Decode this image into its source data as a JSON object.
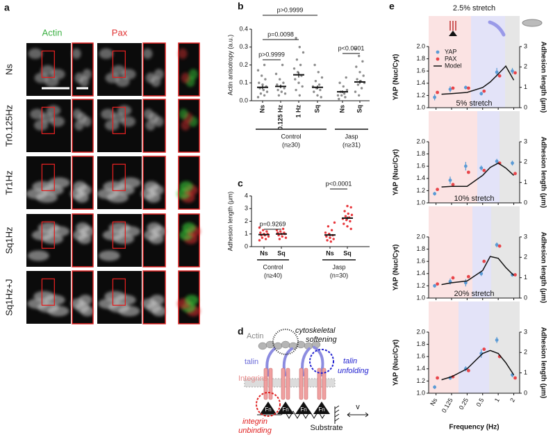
{
  "panel_labels": [
    "a",
    "b",
    "c",
    "d",
    "e"
  ],
  "panel_a": {
    "columns": [
      "Actin",
      "Pax"
    ],
    "rows": [
      "Ns",
      "Tr0.125Hz",
      "Tr1Hz",
      "Sq1Hz",
      "Sq1Hz+J"
    ]
  },
  "panel_d": {
    "actin": "Actin",
    "softening": [
      "cytoskeletal",
      "softening"
    ],
    "talin": "talin",
    "unfolding": [
      "talin",
      "unfolding"
    ],
    "integrins": "Integrins",
    "unbinding": [
      "integrin",
      "unbinding"
    ],
    "fn": [
      "Fn",
      "Fn",
      "Fn",
      "Fn"
    ],
    "substrate": "Substrate",
    "velocity": "v"
  },
  "chart_data": [
    {
      "type": "strip",
      "ylabel": "Actin anisotropy (a.u.)",
      "ylim": [
        0,
        0.4
      ],
      "yticks": [
        {
          "value": 0,
          "label": "0.0"
        },
        0.1,
        0.2,
        0.3,
        0.4
      ],
      "categories": [
        "Ns",
        "0.125 Hz",
        "1 Hz",
        "Sq",
        "Ns",
        "Sq"
      ],
      "point_color": "#8c8c8c",
      "points": [
        [
          0.02,
          0.03,
          0.04,
          0.05,
          0.06,
          0.07,
          0.08,
          0.09,
          0.1,
          0.12,
          0.14,
          0.17,
          0.2
        ],
        [
          0.03,
          0.04,
          0.05,
          0.06,
          0.07,
          0.08,
          0.09,
          0.1,
          0.12,
          0.15,
          0.2
        ],
        [
          0.03,
          0.06,
          0.08,
          0.1,
          0.12,
          0.14,
          0.16,
          0.18,
          0.2,
          0.23,
          0.27,
          0.3,
          0.35
        ],
        [
          0.02,
          0.03,
          0.05,
          0.06,
          0.07,
          0.08,
          0.09,
          0.11,
          0.13,
          0.16,
          0.2
        ],
        [
          0.01,
          0.02,
          0.03,
          0.03,
          0.04,
          0.05,
          0.06,
          0.08,
          0.1,
          0.13
        ],
        [
          0.03,
          0.05,
          0.07,
          0.09,
          0.1,
          0.11,
          0.12,
          0.14,
          0.16,
          0.19,
          0.22,
          0.25,
          0.29
        ]
      ],
      "means": [
        0.075,
        0.08,
        0.145,
        0.075,
        0.05,
        0.105
      ],
      "sem": [
        0.01,
        0.01,
        0.015,
        0.01,
        0.007,
        0.01
      ],
      "groups": [
        {
          "name": "Control",
          "n": "(n≥30)"
        },
        {
          "name": "Jasp",
          "n": "(n≥31)"
        }
      ],
      "comparisons": [
        "p>0.9999",
        "p=0.0098",
        "p>0.9999",
        "p<0.0001"
      ]
    },
    {
      "type": "strip",
      "ylabel": "Adhesion length (μm)",
      "ylim": [
        0,
        4
      ],
      "yticks": [
        0,
        1,
        2,
        3,
        4
      ],
      "categories": [
        "Ns",
        "Sq",
        "Ns",
        "Sq"
      ],
      "point_color": "#e8383d",
      "points": [
        [
          0.5,
          0.6,
          0.7,
          0.8,
          0.9,
          0.9,
          1.0,
          1.0,
          1.1,
          1.2,
          1.3,
          1.5
        ],
        [
          0.6,
          0.7,
          0.8,
          0.9,
          1.0,
          1.0,
          1.1,
          1.1,
          1.2,
          1.3,
          1.4
        ],
        [
          0.4,
          0.5,
          0.6,
          0.7,
          0.8,
          0.9,
          1.0,
          1.1,
          1.3,
          1.6,
          1.9
        ],
        [
          1.4,
          1.6,
          1.8,
          2.0,
          2.1,
          2.2,
          2.3,
          2.4,
          2.5,
          2.6,
          2.8,
          3.1,
          3.2
        ]
      ],
      "means": [
        0.95,
        1.0,
        0.92,
        2.25
      ],
      "sem": [
        0.05,
        0.05,
        0.1,
        0.12
      ],
      "groups": [
        {
          "name": "Control",
          "n": "(n≥40)"
        },
        {
          "name": "Jasp",
          "n": "(n=30)"
        }
      ],
      "comparisons": [
        "p=0.9269",
        "p<0.0001"
      ]
    },
    {
      "type": "line",
      "xlabel": "Frequency (Hz)",
      "ylabel": "YAP (Nuc/Cyt)",
      "y2label": "Adhesion length (μm)",
      "log_x": true,
      "legend": "upper left",
      "xlim": [
        0.045,
        2.6
      ],
      "xticks": [
        {
          "value": 0.0625,
          "label": "Ns"
        },
        0.125,
        0.25,
        0.5,
        1,
        2
      ],
      "ylim": [
        1,
        2
      ],
      "yticks": [
        {
          "value": 1,
          "label": "1.0"
        },
        1.2,
        1.4,
        1.6,
        1.8,
        {
          "value": 2,
          "label": "2.0"
        }
      ],
      "y2lim": [
        0,
        3
      ],
      "y2ticks": [
        0,
        1,
        2,
        3
      ],
      "panels": [
        {
          "title": "2.5% stretch",
          "series": [
            {
              "name": "YAP",
              "color": "#5b9bd5",
              "x": [
                0.0625,
                0.125,
                0.25,
                0.5,
                1,
                2
              ],
              "values": [
                1.17,
                1.3,
                1.33,
                1.23,
                1.58,
                1.6
              ],
              "errors": [
                0.05,
                0.05,
                0.03,
                0.03,
                0.07,
                0.05
              ]
            },
            {
              "name": "PAX",
              "color": "#e8454a",
              "axis": "y2",
              "x": [
                0.0625,
                0.125,
                0.25,
                0.5,
                1,
                2
              ],
              "values": [
                0.75,
                0.96,
                0.96,
                0.81,
                1.56,
                1.71
              ]
            },
            {
              "name": "Model",
              "color": "#111111",
              "axis": "y2",
              "x": [
                0.08,
                0.125,
                0.25,
                0.5,
                0.7,
                1,
                1.4,
                2
              ],
              "values": [
                0.66,
                0.69,
                0.75,
                0.99,
                1.26,
                1.65,
                2.04,
                1.35
              ]
            }
          ]
        },
        {
          "title": "5% stretch",
          "series": [
            {
              "color": "#5b9bd5",
              "x": [
                0.0625,
                0.125,
                0.25,
                0.5,
                1,
                2
              ],
              "values": [
                1.15,
                1.37,
                1.6,
                1.57,
                1.68,
                1.65
              ],
              "errors": [
                0.03,
                0.06,
                0.07,
                0.04,
                0.04,
                0.04
              ]
            },
            {
              "color": "#e8454a",
              "axis": "y2",
              "x": [
                0.0625,
                0.125,
                0.25,
                0.5,
                1,
                2
              ],
              "values": [
                0.66,
                0.9,
                1.5,
                1.59,
                1.95,
                1.44
              ]
            },
            {
              "color": "#111111",
              "axis": "y2",
              "x": [
                0.08,
                0.125,
                0.25,
                0.5,
                0.7,
                1,
                1.4,
                2
              ],
              "values": [
                0.78,
                0.81,
                0.81,
                1.35,
                1.74,
                1.95,
                1.71,
                1.35
              ]
            }
          ]
        },
        {
          "title": "10% stretch",
          "series": [
            {
              "color": "#5b9bd5",
              "x": [
                0.0625,
                0.125,
                0.25,
                0.5,
                1,
                2
              ],
              "values": [
                1.2,
                1.27,
                1.25,
                1.4,
                1.87,
                1.38
              ],
              "errors": [
                0.03,
                0.05,
                0.06,
                0.04,
                0.04,
                0.03
              ]
            },
            {
              "color": "#e8454a",
              "axis": "y2",
              "x": [
                0.0625,
                0.125,
                0.25,
                0.5,
                1,
                2
              ],
              "values": [
                0.69,
                0.99,
                1.05,
                1.8,
                2.55,
                1.14
              ]
            },
            {
              "color": "#111111",
              "axis": "y2",
              "x": [
                0.08,
                0.125,
                0.25,
                0.5,
                0.7,
                1,
                1.4,
                2
              ],
              "values": [
                0.66,
                0.75,
                0.84,
                1.35,
                2.04,
                1.95,
                1.5,
                1.11
              ]
            }
          ]
        },
        {
          "title": "20% stretch",
          "series": [
            {
              "color": "#5b9bd5",
              "x": [
                0.0625,
                0.125,
                0.25,
                0.5,
                1,
                2
              ],
              "values": [
                1.1,
                1.25,
                1.4,
                1.65,
                1.87,
                1.3
              ],
              "errors": [
                0.03,
                0.03,
                0.04,
                0.07,
                0.05,
                0.04
              ]
            },
            {
              "color": "#e8454a",
              "axis": "y2",
              "x": [
                0.0625,
                0.125,
                0.25,
                0.5,
                1,
                2
              ],
              "values": [
                0.75,
                0.81,
                1.11,
                2.16,
                1.8,
                0.75
              ]
            },
            {
              "color": "#111111",
              "axis": "y2",
              "x": [
                0.08,
                0.125,
                0.25,
                0.5,
                0.7,
                1,
                1.4,
                2
              ],
              "values": [
                0.66,
                0.81,
                1.2,
                1.95,
                2.1,
                1.95,
                1.5,
                0.9
              ]
            }
          ]
        }
      ]
    }
  ]
}
